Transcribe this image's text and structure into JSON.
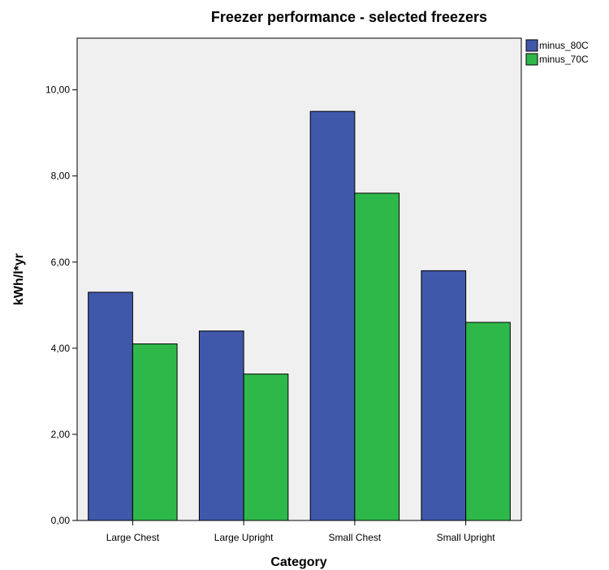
{
  "chart_data": {
    "type": "bar",
    "title": "Freezer performance - selected freezers",
    "xlabel": "Category",
    "ylabel": "kWh/l*yr",
    "categories": [
      "Large Chest",
      "Large Upright",
      "Small Chest",
      "Small Upright"
    ],
    "series": [
      {
        "name": "minus_80C",
        "values": [
          5.3,
          4.4,
          9.5,
          5.8
        ],
        "color": "#3f58aa"
      },
      {
        "name": "minus_70C",
        "values": [
          4.1,
          3.4,
          7.6,
          4.6
        ],
        "color": "#2fb84a"
      }
    ],
    "ylim": [
      0,
      11.2
    ],
    "yticks": [
      0,
      2,
      4,
      6,
      8,
      10
    ],
    "ytick_labels": [
      "0,00",
      "2,00",
      "4,00",
      "6,00",
      "8,00",
      "10,00"
    ],
    "grid": false,
    "legend": "top-right",
    "plot_background": "#f0f0f0"
  }
}
